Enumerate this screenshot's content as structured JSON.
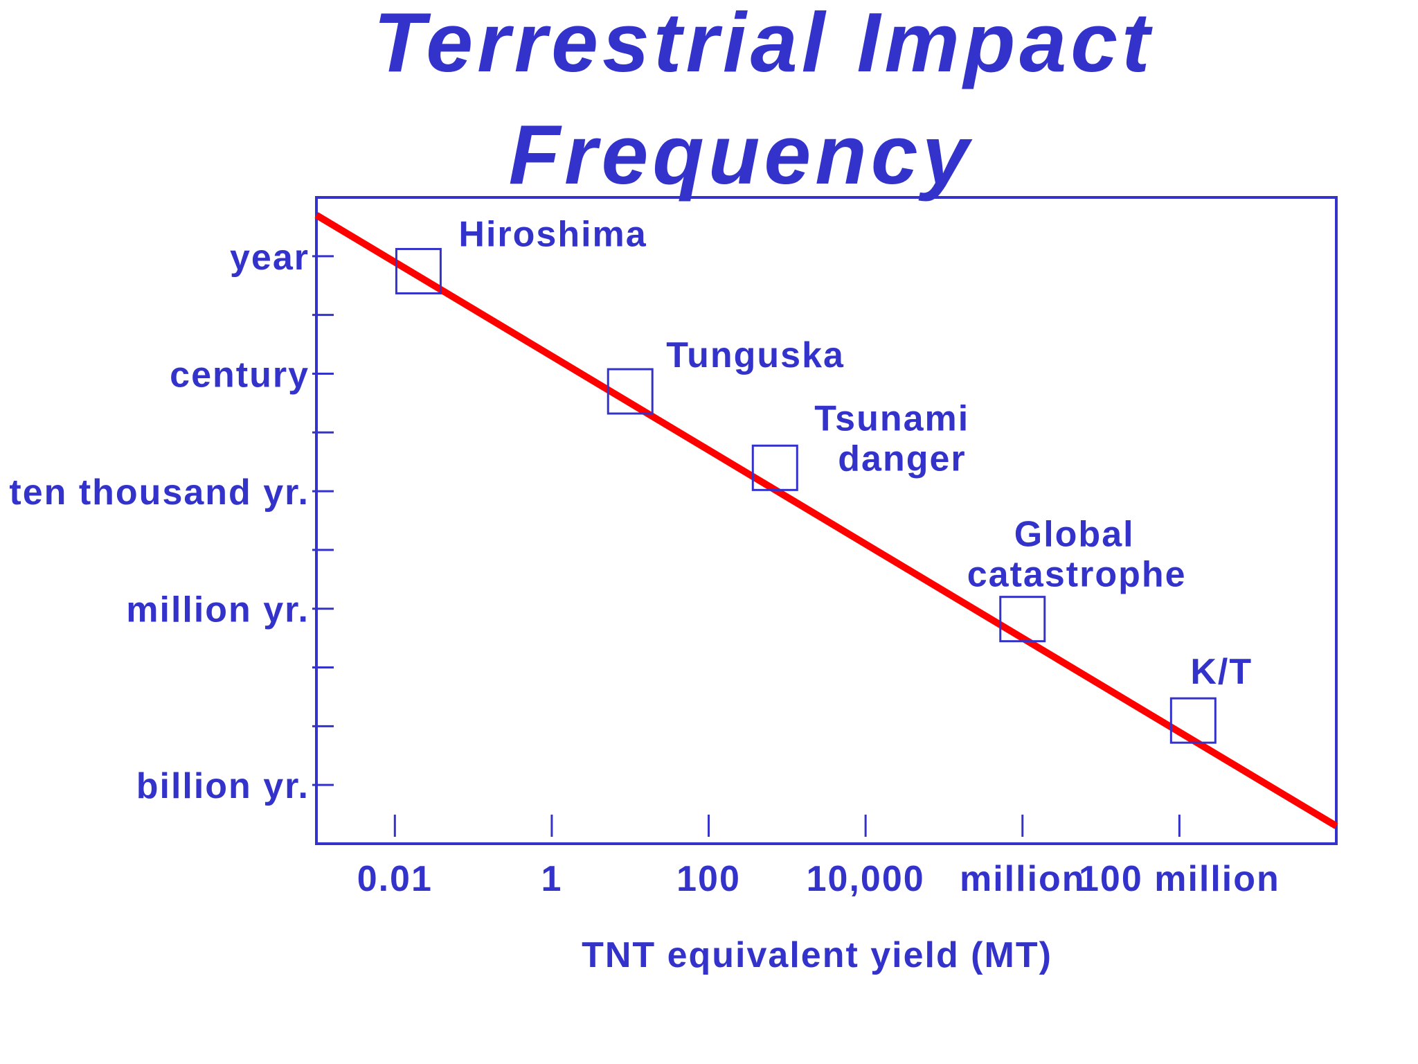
{
  "chart_data": {
    "type": "line",
    "title_lines": [
      "Terrestrial Impact",
      "Frequency"
    ],
    "xlabel": "TNT equivalent yield (MT)",
    "ylabel": "",
    "x_scale": "log",
    "xlim": [
      0.001,
      10000000000
    ],
    "x_ticks": [
      {
        "value": 0.01,
        "label": "0.01"
      },
      {
        "value": 1,
        "label": "1"
      },
      {
        "value": 100,
        "label": "100"
      },
      {
        "value": 10000,
        "label": "10,000"
      },
      {
        "value": 1000000,
        "label": "million"
      },
      {
        "value": 100000000,
        "label": "100 million"
      }
    ],
    "y_scale": "log",
    "y_inverted": true,
    "ylim_years": [
      0.1,
      10000000000
    ],
    "y_ticks": [
      {
        "value": 1,
        "label": "year"
      },
      {
        "value": 100,
        "label": "century"
      },
      {
        "value": 10000,
        "label": "ten thousand yr."
      },
      {
        "value": 1000000,
        "label": "million yr."
      },
      {
        "value": 1000000000,
        "label": "billion yr."
      }
    ],
    "y_minor_ticks": [
      10,
      1000,
      100000,
      10000000,
      100000000
    ],
    "series": [
      {
        "color": "#ff0000",
        "x": [
          0.001,
          10000000000
        ],
        "y": [
          0.2,
          5000000000
        ]
      }
    ],
    "events": [
      {
        "label": "Hiroshima",
        "x": 0.02,
        "y": 1.8
      },
      {
        "label": "Tunguska",
        "x": 10,
        "y": 200
      },
      {
        "label": "Tsunami danger",
        "x": 700,
        "y": 4000
      },
      {
        "label": "Global catastrophe",
        "x": 1000000,
        "y": 1500000
      },
      {
        "label": "K/T",
        "x": 150000000,
        "y": 80000000
      }
    ],
    "colors": {
      "text": "#3333cc",
      "frame": "#3333cc",
      "trend_line": "#ff0000"
    },
    "grid": false,
    "legend": "none"
  }
}
